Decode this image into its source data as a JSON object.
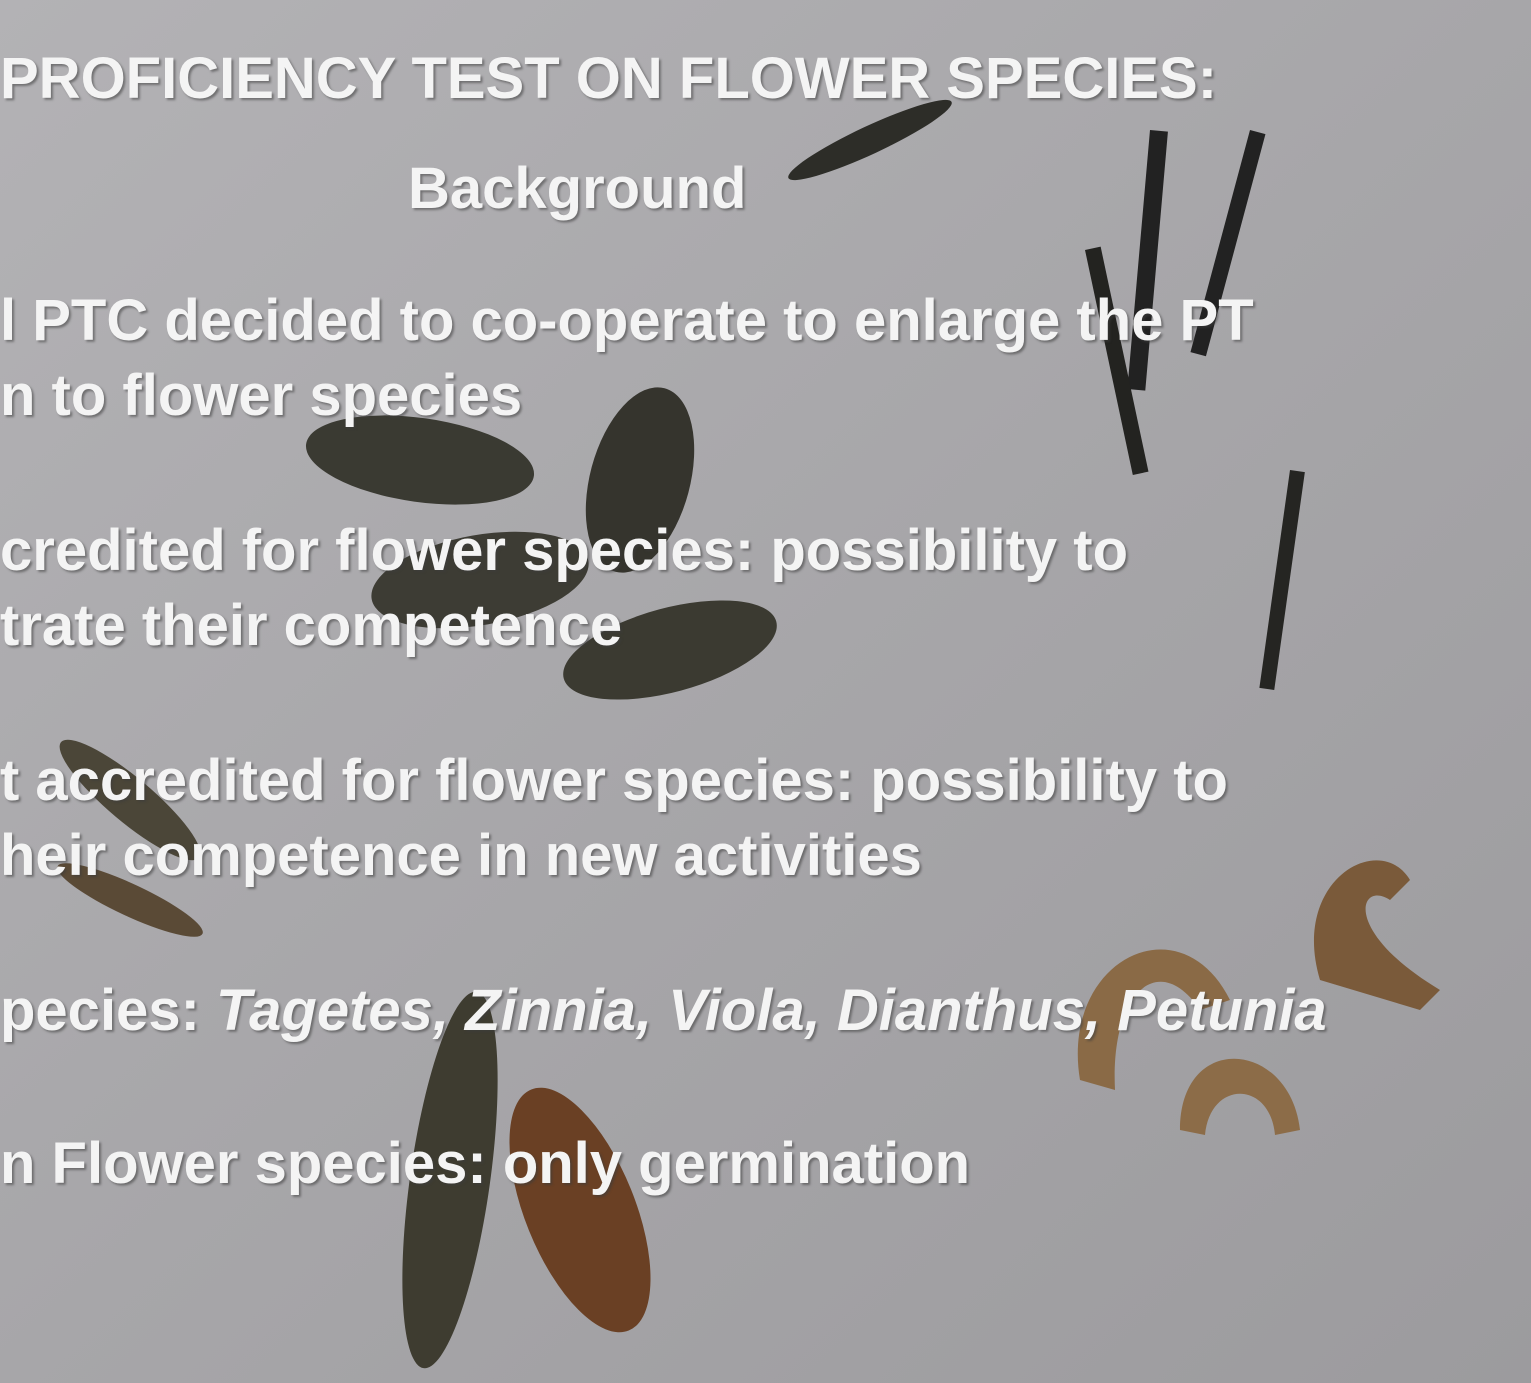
{
  "title": "PROFICIENCY TEST ON FLOWER SPECIES:",
  "subtitle": "Background",
  "bullets": [
    {
      "lines": [
        "l PTC decided to co-operate to enlarge the PT",
        "n to flower species"
      ]
    },
    {
      "lines": [
        "credited for flower species: possibility to",
        "trate their competence"
      ]
    },
    {
      "lines": [
        "t accredited for flower species: possibility to",
        "heir competence in new activities"
      ]
    },
    {
      "lines": [
        {
          "prefix": "pecies:",
          "species": "Tagetes, Zinnia, Viola, Dianthus, Petunia"
        }
      ]
    },
    {
      "lines": [
        "n Flower species: only germination"
      ]
    }
  ]
}
